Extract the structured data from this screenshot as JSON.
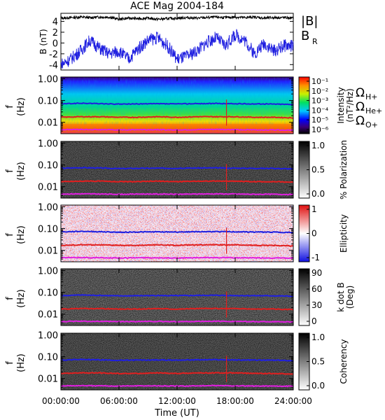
{
  "title": "ACE Mag 2004-184",
  "xlabel": "Time (UT)",
  "x_ticks": [
    "00:00:00",
    "06:00:00",
    "12:00:00",
    "18:00:00",
    "24:00:00"
  ],
  "colors": {
    "b_total": "#000000",
    "b_r": "#1f1fe0",
    "omega_h": "#1f1fe0",
    "omega_he": "#e01f1f",
    "omega_o": "#e01fe0"
  },
  "chart_data": [
    {
      "type": "line",
      "ylabel": "B (nT)",
      "ylim": [
        -5,
        5.5
      ],
      "y_ticks": [
        "4",
        "2",
        "0",
        "-2",
        "-4"
      ],
      "x_range_hours": [
        0,
        24
      ],
      "legend": [
        "|B|",
        "B"
      ],
      "legend_subscript": "R",
      "series": [
        {
          "name": "|B|",
          "color": "#000000",
          "points": [
            [
              0,
              4.6
            ],
            [
              1,
              4.7
            ],
            [
              2,
              4.8
            ],
            [
              3,
              4.7
            ],
            [
              4,
              4.8
            ],
            [
              5,
              4.8
            ],
            [
              6,
              4.4
            ],
            [
              7,
              4.6
            ],
            [
              8,
              4.5
            ],
            [
              9,
              4.6
            ],
            [
              10,
              4.4
            ],
            [
              11,
              4.5
            ],
            [
              12,
              4.6
            ],
            [
              13,
              4.7
            ],
            [
              14,
              4.6
            ],
            [
              15,
              4.7
            ],
            [
              16,
              4.8
            ],
            [
              17,
              4.7
            ],
            [
              18,
              4.8
            ],
            [
              19,
              4.7
            ],
            [
              20,
              4.8
            ],
            [
              21,
              4.6
            ],
            [
              22,
              4.7
            ],
            [
              23,
              4.7
            ],
            [
              24,
              4.6
            ]
          ]
        },
        {
          "name": "B_R",
          "color": "#1f1fe0",
          "points": [
            [
              0,
              -4.0
            ],
            [
              1,
              -3.0
            ],
            [
              2,
              -1.5
            ],
            [
              3,
              0.5
            ],
            [
              4,
              -1.0
            ],
            [
              5,
              -2.0
            ],
            [
              6,
              -1.5
            ],
            [
              7,
              -3.0
            ],
            [
              8,
              -1.0
            ],
            [
              9,
              0.5
            ],
            [
              10,
              1.0
            ],
            [
              11,
              -0.5
            ],
            [
              12,
              -3.0
            ],
            [
              13,
              -2.5
            ],
            [
              14,
              -1.5
            ],
            [
              15,
              0.0
            ],
            [
              16,
              1.0
            ],
            [
              17,
              -0.5
            ],
            [
              18,
              1.5
            ],
            [
              19,
              0.5
            ],
            [
              20,
              -2.0
            ],
            [
              21,
              0.0
            ],
            [
              22,
              -1.5
            ],
            [
              23,
              -0.5
            ],
            [
              24,
              -0.5
            ]
          ]
        }
      ]
    },
    {
      "type": "heatmap",
      "ylabel": "f (Hz)",
      "y_ticks": [
        "1.00",
        "0.10",
        "0.01"
      ],
      "colorbar_label": "Intensity (nT²/Hz)",
      "colorbar_ticks": [
        "10⁻¹",
        "10⁻²",
        "10⁻³",
        "10⁻⁴",
        "10⁻⁵",
        "10⁻⁶"
      ],
      "colormap": "rainbow",
      "gyrofrequency_legend": [
        {
          "name": "ΩH+",
          "color": "#1f1fe0"
        },
        {
          "name": "ΩHe+",
          "color": "#e01f1f"
        },
        {
          "name": "ΩO+",
          "color": "#e01fe0"
        }
      ]
    },
    {
      "type": "heatmap",
      "ylabel": "f (Hz)",
      "y_ticks": [
        "1.00",
        "0.10",
        "0.01"
      ],
      "colorbar_label": "% Polarization",
      "colorbar_ticks": [
        "1.0",
        "0.5",
        "0.0"
      ],
      "colormap": "grayscale"
    },
    {
      "type": "heatmap",
      "ylabel": "f (Hz)",
      "y_ticks": [
        "1.00",
        "0.10",
        "0.01"
      ],
      "colorbar_label": "Ellipticity",
      "colorbar_ticks": [
        "1",
        "0",
        "-1"
      ],
      "colormap": "red-white-blue"
    },
    {
      "type": "heatmap",
      "ylabel": "f (Hz)",
      "y_ticks": [
        "1.00",
        "0.10",
        "0.01"
      ],
      "colorbar_label": "k dot B (Deg)",
      "colorbar_ticks": [
        "90",
        "60",
        "30",
        "0"
      ],
      "colormap": "grayscale"
    },
    {
      "type": "heatmap",
      "ylabel": "f (Hz)",
      "y_ticks": [
        "1.00",
        "0.10",
        "0.01"
      ],
      "colorbar_label": "Coherency",
      "colorbar_ticks": [
        "1.0",
        "0.5",
        "0.0"
      ],
      "colormap": "grayscale"
    }
  ],
  "gyrofrequencies_hz": {
    "hours": [
      0,
      2,
      4,
      6,
      8,
      10,
      12,
      14,
      16,
      18,
      20,
      22,
      24
    ],
    "h_plus": [
      0.07,
      0.075,
      0.072,
      0.068,
      0.07,
      0.071,
      0.07,
      0.072,
      0.073,
      0.071,
      0.07,
      0.069,
      0.066
    ],
    "he_plus": [
      0.017,
      0.018,
      0.018,
      0.017,
      0.017,
      0.018,
      0.017,
      0.018,
      0.018,
      0.018,
      0.017,
      0.017,
      0.016
    ],
    "o_plus": [
      0.0046,
      0.0047,
      0.0046,
      0.0045,
      0.0046,
      0.0046,
      0.0045,
      0.0046,
      0.0047,
      0.0046,
      0.0045,
      0.0045,
      0.0044
    ]
  }
}
